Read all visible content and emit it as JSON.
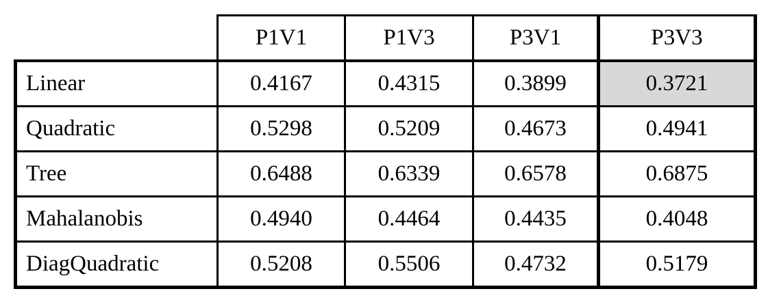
{
  "chart_data": {
    "type": "table",
    "columns": [
      "P1V1",
      "P1V3",
      "P3V1",
      "P3V3"
    ],
    "row_labels": [
      "Linear",
      "Quadratic",
      "Tree",
      "Mahalanobis",
      "DiagQuadratic"
    ],
    "values": [
      [
        0.4167,
        0.4315,
        0.3899,
        0.3721
      ],
      [
        0.5298,
        0.5209,
        0.4673,
        0.4941
      ],
      [
        0.6488,
        0.6339,
        0.6578,
        0.6875
      ],
      [
        0.494,
        0.4464,
        0.4435,
        0.4048
      ],
      [
        0.5208,
        0.5506,
        0.4732,
        0.5179
      ]
    ],
    "highlighted_cell": {
      "row": "Linear",
      "column": "P3V3",
      "value": 0.3721
    },
    "highlight_color": "#d8d8d8",
    "border_color": "#000000",
    "layout": "empty top-left corner cell; heavy outer frame; extra-heavy rules around last column"
  },
  "table": {
    "columns": [
      "P1V1",
      "P1V3",
      "P3V1",
      "P3V3"
    ],
    "rows": [
      {
        "label": "Linear",
        "values": [
          "0.4167",
          "0.4315",
          "0.3899",
          "0.3721"
        ]
      },
      {
        "label": "Quadratic",
        "values": [
          "0.5298",
          "0.5209",
          "0.4673",
          "0.4941"
        ]
      },
      {
        "label": "Tree",
        "values": [
          "0.6488",
          "0.6339",
          "0.6578",
          "0.6875"
        ]
      },
      {
        "label": "Mahalanobis",
        "values": [
          "0.4940",
          "0.4464",
          "0.4435",
          "0.4048"
        ]
      },
      {
        "label": "DiagQuadratic",
        "values": [
          "0.5208",
          "0.5506",
          "0.4732",
          "0.5179"
        ]
      }
    ],
    "highlight_color": "#d8d8d8"
  }
}
